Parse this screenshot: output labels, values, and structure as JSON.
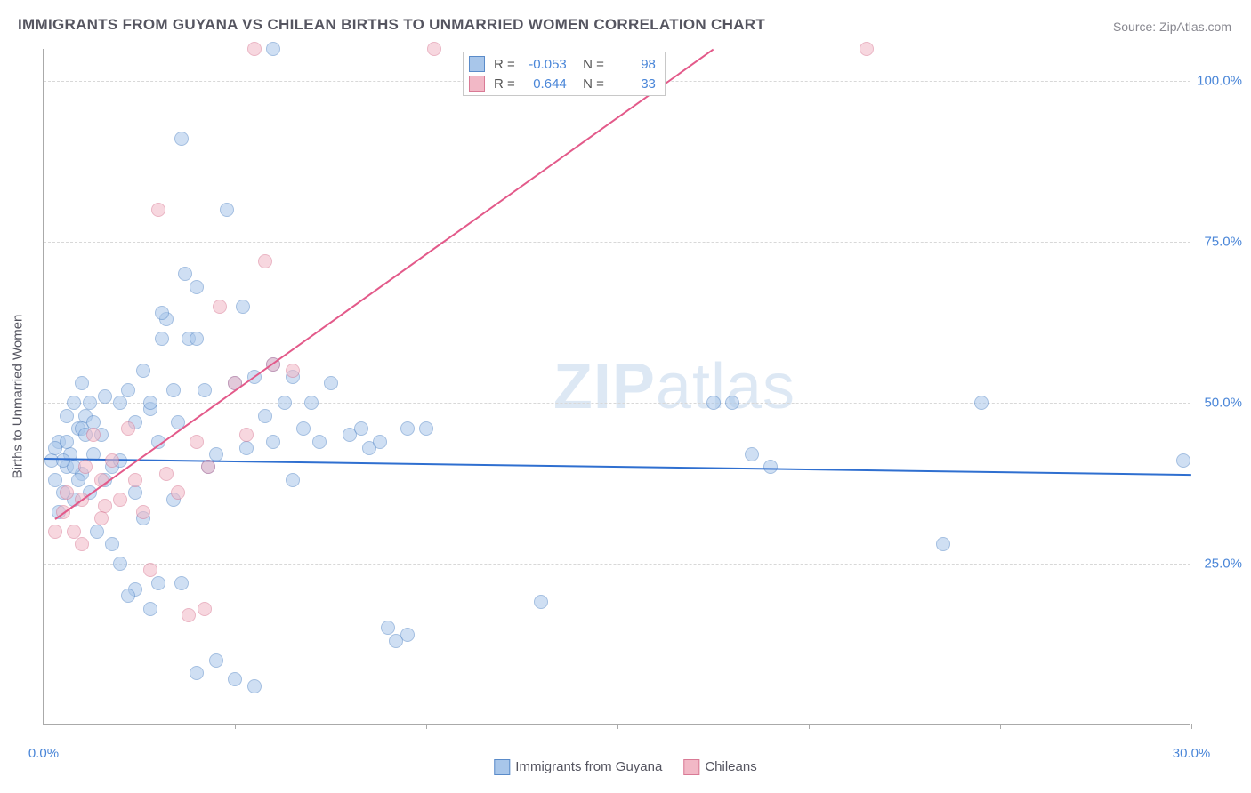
{
  "title": "IMMIGRANTS FROM GUYANA VS CHILEAN BIRTHS TO UNMARRIED WOMEN CORRELATION CHART",
  "source": "Source: ZipAtlas.com",
  "watermark": "ZIPatlas",
  "y_axis_label": "Births to Unmarried Women",
  "chart": {
    "type": "scatter",
    "background_color": "#ffffff",
    "grid_color": "#d8d8d8",
    "axis_color": "#aaaaaa",
    "label_color": "#4a86d8",
    "title_color": "#555560",
    "xlim": [
      0,
      30
    ],
    "ylim": [
      0,
      105
    ],
    "x_ticks": [
      0,
      5,
      10,
      15,
      20,
      25,
      30
    ],
    "x_tick_labels": [
      "0.0%",
      "",
      "",
      "",
      "",
      "",
      "30.0%"
    ],
    "y_gridlines": [
      25,
      50,
      75,
      100
    ],
    "y_tick_labels": [
      "25.0%",
      "50.0%",
      "75.0%",
      "100.0%"
    ],
    "marker_radius": 8,
    "marker_opacity": 0.55,
    "series": [
      {
        "name": "Immigrants from Guyana",
        "fill": "#a8c6ea",
        "stroke": "#5a8bc9",
        "trend_color": "#2f6fd0",
        "R": "-0.053",
        "N": "98",
        "trend": {
          "x1": 0,
          "y1": 41.5,
          "x2": 30,
          "y2": 39.0
        },
        "points": [
          [
            0.2,
            41
          ],
          [
            0.3,
            38
          ],
          [
            0.4,
            44
          ],
          [
            0.5,
            36
          ],
          [
            0.6,
            40
          ],
          [
            0.7,
            42
          ],
          [
            0.8,
            35
          ],
          [
            0.9,
            46
          ],
          [
            1.0,
            39
          ],
          [
            1.1,
            48
          ],
          [
            0.4,
            33
          ],
          [
            0.6,
            44
          ],
          [
            0.8,
            50
          ],
          [
            1.0,
            53
          ],
          [
            1.2,
            36
          ],
          [
            1.3,
            42
          ],
          [
            1.5,
            45
          ],
          [
            1.6,
            38
          ],
          [
            1.8,
            40
          ],
          [
            2.0,
            50
          ],
          [
            2.2,
            52
          ],
          [
            2.4,
            47
          ],
          [
            2.6,
            55
          ],
          [
            2.8,
            49
          ],
          [
            3.0,
            44
          ],
          [
            3.2,
            63
          ],
          [
            3.5,
            47
          ],
          [
            3.8,
            60
          ],
          [
            4.0,
            68
          ],
          [
            4.2,
            52
          ],
          [
            4.5,
            42
          ],
          [
            4.8,
            80
          ],
          [
            5.0,
            53
          ],
          [
            5.2,
            65
          ],
          [
            5.5,
            54
          ],
          [
            5.8,
            48
          ],
          [
            6.0,
            56
          ],
          [
            6.3,
            50
          ],
          [
            6.8,
            46
          ],
          [
            7.2,
            44
          ],
          [
            7.5,
            53
          ],
          [
            8.0,
            45
          ],
          [
            8.3,
            46
          ],
          [
            8.5,
            43
          ],
          [
            9.0,
            15
          ],
          [
            9.2,
            13
          ],
          [
            9.5,
            14
          ],
          [
            10.0,
            46
          ],
          [
            3.6,
            91
          ],
          [
            6.0,
            105
          ],
          [
            2.0,
            25
          ],
          [
            2.4,
            21
          ],
          [
            2.8,
            18
          ],
          [
            3.0,
            22
          ],
          [
            3.4,
            35
          ],
          [
            1.4,
            30
          ],
          [
            1.8,
            28
          ],
          [
            2.2,
            20
          ],
          [
            2.6,
            32
          ],
          [
            3.1,
            64
          ],
          [
            3.4,
            52
          ],
          [
            3.7,
            70
          ],
          [
            1.0,
            46
          ],
          [
            1.2,
            50
          ],
          [
            0.6,
            48
          ],
          [
            0.8,
            40
          ],
          [
            0.9,
            38
          ],
          [
            1.1,
            45
          ],
          [
            1.3,
            47
          ],
          [
            1.6,
            51
          ],
          [
            2.0,
            41
          ],
          [
            0.3,
            43
          ],
          [
            0.5,
            41
          ],
          [
            4.0,
            8
          ],
          [
            4.5,
            10
          ],
          [
            5.0,
            7
          ],
          [
            5.5,
            6
          ],
          [
            6.5,
            54
          ],
          [
            7.0,
            50
          ],
          [
            4.3,
            40
          ],
          [
            13.0,
            19
          ],
          [
            17.5,
            50
          ],
          [
            18.0,
            50
          ],
          [
            18.5,
            42
          ],
          [
            19.0,
            40
          ],
          [
            24.5,
            50
          ],
          [
            23.5,
            28
          ],
          [
            29.8,
            41
          ],
          [
            8.8,
            44
          ],
          [
            9.5,
            46
          ],
          [
            2.4,
            36
          ],
          [
            2.8,
            50
          ],
          [
            3.1,
            60
          ],
          [
            3.6,
            22
          ],
          [
            4.0,
            60
          ],
          [
            5.3,
            43
          ],
          [
            6.0,
            44
          ],
          [
            6.5,
            38
          ]
        ]
      },
      {
        "name": "Chileans",
        "fill": "#f2b8c6",
        "stroke": "#d97a95",
        "trend_color": "#e35a8a",
        "R": "0.644",
        "N": "33",
        "trend": {
          "x1": 0.3,
          "y1": 32,
          "x2": 17.5,
          "y2": 105
        },
        "points": [
          [
            0.3,
            30
          ],
          [
            0.5,
            33
          ],
          [
            0.6,
            36
          ],
          [
            0.8,
            30
          ],
          [
            1.0,
            35
          ],
          [
            1.1,
            40
          ],
          [
            1.3,
            45
          ],
          [
            1.5,
            38
          ],
          [
            1.6,
            34
          ],
          [
            1.8,
            41
          ],
          [
            2.0,
            35
          ],
          [
            2.2,
            46
          ],
          [
            2.4,
            38
          ],
          [
            2.6,
            33
          ],
          [
            2.8,
            24
          ],
          [
            3.0,
            80
          ],
          [
            3.2,
            39
          ],
          [
            3.5,
            36
          ],
          [
            3.8,
            17
          ],
          [
            4.0,
            44
          ],
          [
            4.3,
            40
          ],
          [
            5.0,
            53
          ],
          [
            5.8,
            72
          ],
          [
            6.5,
            55
          ],
          [
            5.5,
            105
          ],
          [
            4.2,
            18
          ],
          [
            5.3,
            45
          ],
          [
            6.0,
            56
          ],
          [
            10.2,
            105
          ],
          [
            21.5,
            105
          ],
          [
            1.0,
            28
          ],
          [
            1.5,
            32
          ],
          [
            4.6,
            65
          ]
        ]
      }
    ]
  },
  "legend_bottom": [
    {
      "label": "Immigrants from Guyana",
      "fill": "#a8c6ea",
      "stroke": "#5a8bc9"
    },
    {
      "label": "Chileans",
      "fill": "#f2b8c6",
      "stroke": "#d97a95"
    }
  ]
}
